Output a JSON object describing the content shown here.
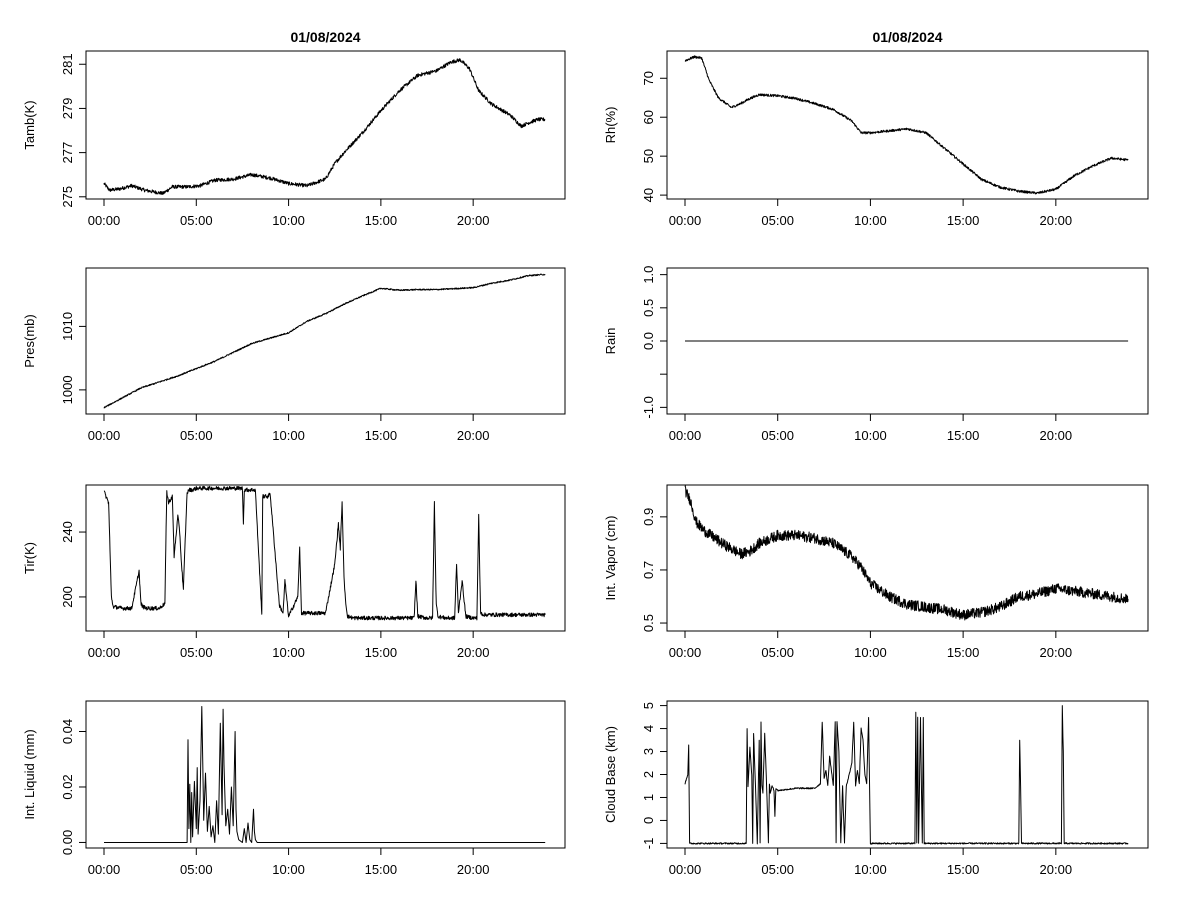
{
  "chart_data": [
    {
      "type": "line",
      "title": "01/08/2024",
      "xlabel": "",
      "ylabel": "Tamb(K)",
      "xlim": [
        0,
        24
      ],
      "ylim": [
        274.9,
        281.6
      ],
      "yticks": [
        275,
        277,
        279,
        281
      ],
      "xticks": [
        "00:00",
        "05:00",
        "10:00",
        "15:00",
        "20:00"
      ],
      "noise": 0.08,
      "x": [
        0,
        0.3,
        0.8,
        1.5,
        2.2,
        3.2,
        3.7,
        4.5,
        5.2,
        6,
        7,
        8,
        9,
        10,
        11,
        12,
        12.5,
        13,
        14,
        15,
        16,
        17,
        18,
        18.8,
        19.3,
        19.8,
        20.3,
        21,
        22,
        22.6,
        23,
        23.5,
        23.9
      ],
      "y": [
        275.6,
        275.3,
        275.35,
        275.5,
        275.3,
        275.15,
        275.45,
        275.45,
        275.5,
        275.75,
        275.8,
        276.0,
        275.85,
        275.6,
        275.5,
        275.8,
        276.5,
        277.0,
        277.9,
        278.9,
        279.8,
        280.5,
        280.7,
        281.1,
        281.2,
        280.8,
        279.8,
        279.2,
        278.7,
        278.2,
        278.35,
        278.5,
        278.5
      ]
    },
    {
      "type": "line",
      "title": "01/08/2024",
      "xlabel": "",
      "ylabel": "Rh(%)",
      "xlim": [
        0,
        24
      ],
      "ylim": [
        39,
        77
      ],
      "yticks": [
        40,
        50,
        60,
        70
      ],
      "xticks": [
        "00:00",
        "05:00",
        "10:00",
        "15:00",
        "20:00"
      ],
      "noise": 0.3,
      "x": [
        0,
        0.5,
        0.9,
        1.3,
        1.8,
        2.5,
        3.0,
        3.5,
        4.0,
        5.0,
        6.0,
        7.0,
        8.0,
        9.0,
        9.5,
        10,
        11,
        12,
        13,
        14,
        15,
        16,
        17,
        18,
        19,
        20,
        21,
        22,
        23,
        23.9
      ],
      "y": [
        74.5,
        75.5,
        75.2,
        69.5,
        65.0,
        62.5,
        63.5,
        64.8,
        65.8,
        65.5,
        64.8,
        63.5,
        62.0,
        59.0,
        56.0,
        56.0,
        56.5,
        57.0,
        56.0,
        52.0,
        48.0,
        44.0,
        42.0,
        41.0,
        40.5,
        41.5,
        45.0,
        47.5,
        49.5,
        49.0
      ]
    },
    {
      "type": "line",
      "title": "",
      "xlabel": "",
      "ylabel": "Pres(mb)",
      "xlim": [
        0,
        24
      ],
      "ylim": [
        996.2,
        1019.2
      ],
      "yticks": [
        1000,
        1010
      ],
      "xticks": [
        "00:00",
        "05:00",
        "10:00",
        "15:00",
        "20:00"
      ],
      "noise": 0.1,
      "x": [
        0,
        2,
        4,
        6,
        8,
        10,
        11,
        12,
        13,
        14,
        15,
        16,
        17,
        18,
        20,
        21,
        22,
        23,
        23.9
      ],
      "y": [
        997.2,
        1000.3,
        1002.2,
        1004.5,
        1007.3,
        1009.0,
        1010.8,
        1012.0,
        1013.5,
        1014.8,
        1016.0,
        1015.7,
        1015.8,
        1015.8,
        1016.1,
        1016.8,
        1017.3,
        1018.0,
        1018.2
      ]
    },
    {
      "type": "line",
      "title": "",
      "xlabel": "",
      "ylabel": "Rain",
      "xlim": [
        0,
        24
      ],
      "ylim": [
        -1.1,
        1.1
      ],
      "yticks": [
        -1.0,
        -0.5,
        0.0,
        0.5,
        1.0
      ],
      "ytick_labels": [
        "-1.0",
        "",
        "0.0",
        "0.5",
        "1.0"
      ],
      "xticks": [
        "00:00",
        "05:00",
        "10:00",
        "15:00",
        "20:00"
      ],
      "noise": 0,
      "x": [
        0,
        23.9
      ],
      "y": [
        0,
        0
      ]
    },
    {
      "type": "line",
      "title": "",
      "xlabel": "",
      "ylabel": "Tir(K)",
      "xlim": [
        0,
        24
      ],
      "ylim": [
        179,
        269
      ],
      "yticks": [
        200,
        240
      ],
      "xticks": [
        "00:00",
        "05:00",
        "10:00",
        "15:00",
        "20:00"
      ],
      "noise": 1.2,
      "x": [
        0,
        0.25,
        0.4,
        0.5,
        1.0,
        1.5,
        1.9,
        2.0,
        2.1,
        2.3,
        3.0,
        3.3,
        3.4,
        3.5,
        3.7,
        3.8,
        4.0,
        4.1,
        4.2,
        4.3,
        4.4,
        4.5,
        4.6,
        4.8,
        5.0,
        6.0,
        7.0,
        7.5,
        7.55,
        7.6,
        8.0,
        8.2,
        8.5,
        8.55,
        8.6,
        8.9,
        9.0,
        9.5,
        9.7,
        9.8,
        10.0,
        10.5,
        10.6,
        10.7,
        11.0,
        11.5,
        12.0,
        12.5,
        12.7,
        12.8,
        12.9,
        13.0,
        13.1,
        13.2,
        13.5,
        15.0,
        16.8,
        16.9,
        17.0,
        17.5,
        17.8,
        17.9,
        18.0,
        18.1,
        18.5,
        19.0,
        19.1,
        19.2,
        19.4,
        19.6,
        20.0,
        20.2,
        20.3,
        20.4,
        20.6,
        21.0,
        22.0,
        23.9
      ],
      "y": [
        265,
        258,
        200,
        194,
        193,
        193,
        216,
        196,
        194,
        193,
        193,
        196,
        265,
        258,
        262,
        225,
        250,
        240,
        220,
        205,
        235,
        264,
        266,
        266,
        267,
        267,
        267,
        267,
        245,
        266,
        266,
        266,
        200,
        190,
        262,
        262,
        264,
        195,
        190,
        210,
        188,
        200,
        230,
        190,
        190,
        190,
        190,
        220,
        245,
        230,
        258,
        212,
        196,
        188,
        187,
        187,
        187,
        210,
        188,
        187,
        187,
        258,
        195,
        188,
        187,
        187,
        220,
        190,
        210,
        188,
        187,
        187,
        250,
        190,
        189,
        189,
        189,
        189
      ]
    },
    {
      "type": "line",
      "title": "",
      "xlabel": "",
      "ylabel": "Int. Vapor (cm)",
      "xlim": [
        0,
        24
      ],
      "ylim": [
        0.47,
        1.02
      ],
      "yticks": [
        0.5,
        0.7,
        0.9
      ],
      "xticks": [
        "00:00",
        "05:00",
        "10:00",
        "15:00",
        "20:00"
      ],
      "noise": 0.02,
      "x": [
        0,
        0.3,
        0.6,
        1.0,
        2.0,
        3.0,
        3.5,
        4.0,
        5.0,
        6.0,
        7.0,
        8.0,
        9.0,
        9.5,
        10.0,
        11.0,
        12.0,
        13.0,
        14.0,
        15.0,
        16.0,
        17.0,
        17.5,
        18.0,
        19.0,
        20.0,
        21.0,
        22.0,
        23.0,
        23.9
      ],
      "y": [
        1.0,
        0.96,
        0.88,
        0.85,
        0.8,
        0.76,
        0.77,
        0.8,
        0.83,
        0.83,
        0.82,
        0.8,
        0.75,
        0.71,
        0.65,
        0.6,
        0.57,
        0.56,
        0.55,
        0.53,
        0.54,
        0.56,
        0.58,
        0.6,
        0.61,
        0.63,
        0.62,
        0.61,
        0.6,
        0.59
      ]
    },
    {
      "type": "line",
      "title": "",
      "xlabel": "",
      "ylabel": "Int. Liquid (mm)",
      "xlim": [
        0,
        24
      ],
      "ylim": [
        -0.002,
        0.051
      ],
      "yticks": [
        0.0,
        0.02,
        0.04
      ],
      "ytick_labels": [
        "0.00",
        "0.02",
        "0.04"
      ],
      "xticks": [
        "00:00",
        "05:00",
        "10:00",
        "15:00",
        "20:00"
      ],
      "noise": 0,
      "x": [
        0,
        4.5,
        4.55,
        4.6,
        4.65,
        4.7,
        4.75,
        4.8,
        4.9,
        5.0,
        5.05,
        5.1,
        5.2,
        5.3,
        5.35,
        5.4,
        5.5,
        5.6,
        5.7,
        5.8,
        5.9,
        6.0,
        6.1,
        6.2,
        6.3,
        6.4,
        6.45,
        6.5,
        6.6,
        6.7,
        6.8,
        6.9,
        7.0,
        7.1,
        7.15,
        7.2,
        7.3,
        7.5,
        7.6,
        7.7,
        7.8,
        7.9,
        8.0,
        8.1,
        8.15,
        8.2,
        8.3,
        23.9
      ],
      "y": [
        0,
        0,
        0.037,
        0.005,
        0.021,
        0,
        0.018,
        0.002,
        0.022,
        0.005,
        0.027,
        0.003,
        0.015,
        0.049,
        0.028,
        0.008,
        0.025,
        0.004,
        0.013,
        0.002,
        0.006,
        0,
        0.015,
        0.003,
        0.043,
        0.01,
        0.048,
        0.028,
        0.006,
        0.012,
        0.003,
        0.02,
        0.006,
        0.04,
        0.012,
        0.004,
        0.001,
        0,
        0.005,
        0,
        0.007,
        0.001,
        0,
        0.012,
        0.004,
        0.001,
        0,
        0
      ]
    },
    {
      "type": "line",
      "title": "",
      "xlabel": "",
      "ylabel": "Cloud Base (km)",
      "xlim": [
        0,
        24
      ],
      "ylim": [
        -1.2,
        5.2
      ],
      "yticks": [
        -1,
        0,
        1,
        2,
        3,
        4,
        5
      ],
      "xticks": [
        "00:00",
        "05:00",
        "10:00",
        "15:00",
        "20:00"
      ],
      "noise": 0.03,
      "x": [
        0,
        0.15,
        0.2,
        0.25,
        0.3,
        0.35,
        3.3,
        3.35,
        3.4,
        3.5,
        3.6,
        3.65,
        3.7,
        3.8,
        3.9,
        4.0,
        4.05,
        4.1,
        4.15,
        4.2,
        4.3,
        4.4,
        4.5,
        4.55,
        4.6,
        4.7,
        4.8,
        4.85,
        4.9,
        5.0,
        6.0,
        7.0,
        7.3,
        7.4,
        7.5,
        7.6,
        7.7,
        7.8,
        8.0,
        8.1,
        8.15,
        8.2,
        8.3,
        8.4,
        8.5,
        8.6,
        8.7,
        8.8,
        9.0,
        9.1,
        9.2,
        9.3,
        9.4,
        9.5,
        9.6,
        9.7,
        9.8,
        9.9,
        9.95,
        10.0,
        12.4,
        12.45,
        12.5,
        12.55,
        12.6,
        12.7,
        12.75,
        12.8,
        12.85,
        12.9,
        18.0,
        18.05,
        18.1,
        18.15,
        20.3,
        20.35,
        20.4,
        20.45,
        23.9
      ],
      "y": [
        1.6,
        2.0,
        3.3,
        -1,
        -1,
        -1,
        -1,
        4.0,
        1.5,
        3.2,
        2.0,
        -1,
        3.8,
        1.5,
        -1,
        3.5,
        -1,
        4.3,
        1.5,
        1.2,
        3.8,
        1.5,
        -1,
        1.6,
        1.2,
        1.5,
        1.3,
        0.2,
        1.4,
        1.3,
        1.4,
        1.4,
        1.6,
        4.3,
        1.8,
        2.2,
        1.5,
        2.8,
        1.5,
        4.3,
        -1,
        4.3,
        3.0,
        -1,
        1.5,
        -1,
        1.5,
        1.8,
        2.5,
        4.3,
        1.5,
        2.2,
        1.6,
        4.0,
        3.5,
        2.0,
        1.6,
        4.5,
        1.7,
        -1,
        -1,
        4.7,
        -1,
        4.5,
        -1,
        4.5,
        1.5,
        -1,
        4.5,
        -1,
        -1,
        3.5,
        1.5,
        -1,
        -1,
        5.0,
        3.0,
        -1,
        -1
      ]
    }
  ]
}
